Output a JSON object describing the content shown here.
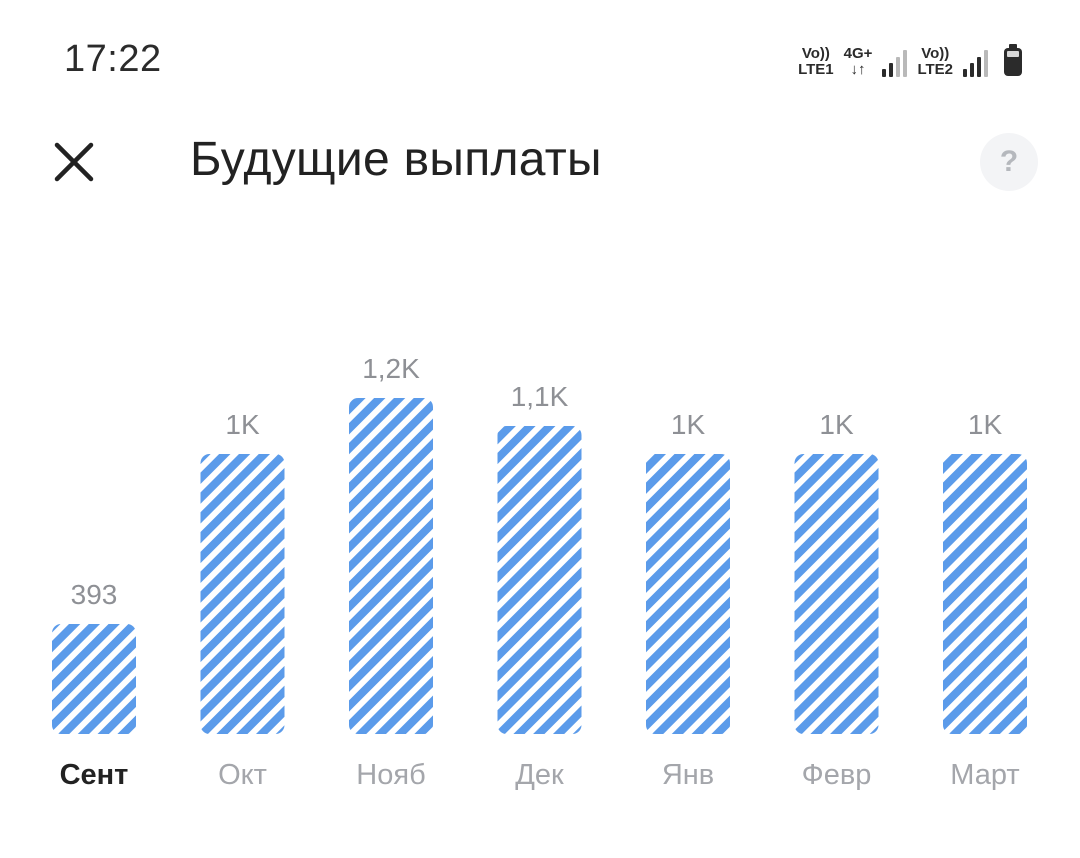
{
  "status_bar": {
    "time": "17:22",
    "sim1_top": "Vo))",
    "sim1_bottom": "LTE1",
    "data_top": "4G+",
    "data_bottom": "↓↑",
    "sim2_top": "Vo))",
    "sim2_bottom": "LTE2",
    "battery_icon": "battery-icon"
  },
  "header": {
    "close_icon": "close-icon",
    "title": "Будущие выплаты",
    "help_label": "?"
  },
  "colors": {
    "bar_stripe": "#5b9bea",
    "bar_background": "#ffffff",
    "selected_month": "#222222",
    "month": "#a4a6ab",
    "value": "#8e9095"
  },
  "chart_data": {
    "type": "bar",
    "categories": [
      "Сент",
      "Окт",
      "Нояб",
      "Дек",
      "Янв",
      "Февр",
      "Март"
    ],
    "values": [
      393,
      1000,
      1200,
      1100,
      1000,
      1000,
      1000
    ],
    "value_labels": [
      "393",
      "1K",
      "1,2K",
      "1,1K",
      "1K",
      "1K",
      "1K"
    ],
    "selected_index": 0,
    "title": "",
    "xlabel": "",
    "ylabel": "",
    "ylim": [
      0,
      1200
    ],
    "grid": false,
    "legend": "none"
  }
}
